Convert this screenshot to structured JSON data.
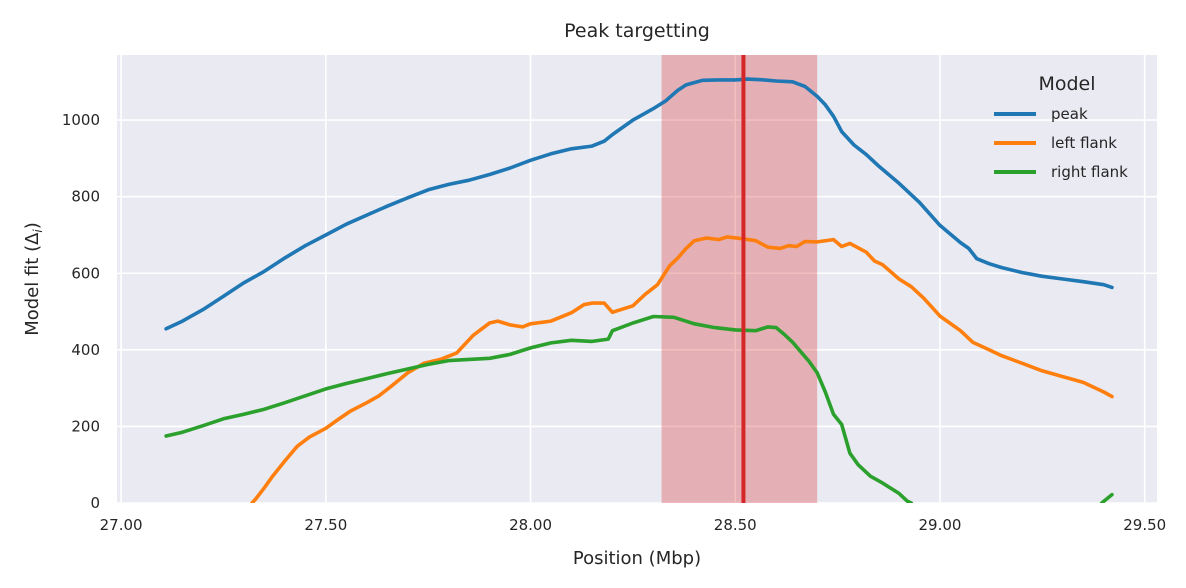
{
  "chart_data": {
    "type": "line",
    "title": "Peak targetting",
    "xlabel": "Position (Mbp)",
    "ylabel": "Model fit (Δ",
    "ylabel_sub": "i",
    "ylabel_close": ")",
    "xlim": [
      26.99,
      29.53
    ],
    "ylim": [
      0,
      1170
    ],
    "xticks": [
      27.0,
      27.5,
      28.0,
      28.5,
      29.0,
      29.5
    ],
    "xtick_labels": [
      "27.00",
      "27.50",
      "28.00",
      "28.50",
      "29.00",
      "29.50"
    ],
    "yticks": [
      0,
      200,
      400,
      600,
      800,
      1000
    ],
    "ytick_labels": [
      "0",
      "200",
      "400",
      "600",
      "800",
      "1000"
    ],
    "grid": true,
    "legend": {
      "title": "Model",
      "placement": "top-right"
    },
    "highlight_band": {
      "x_start": 28.32,
      "x_end": 28.7,
      "color": "#d62728",
      "opacity": 0.3
    },
    "highlight_line": {
      "x": 28.52,
      "color": "#d62728"
    },
    "series": [
      {
        "name": "peak",
        "color": "#1f77b4",
        "points": [
          [
            27.11,
            455
          ],
          [
            27.15,
            475
          ],
          [
            27.2,
            505
          ],
          [
            27.25,
            540
          ],
          [
            27.3,
            575
          ],
          [
            27.35,
            605
          ],
          [
            27.4,
            640
          ],
          [
            27.45,
            672
          ],
          [
            27.5,
            700
          ],
          [
            27.55,
            728
          ],
          [
            27.6,
            752
          ],
          [
            27.65,
            775
          ],
          [
            27.7,
            797
          ],
          [
            27.75,
            818
          ],
          [
            27.8,
            832
          ],
          [
            27.85,
            843
          ],
          [
            27.9,
            858
          ],
          [
            27.95,
            875
          ],
          [
            28.0,
            895
          ],
          [
            28.05,
            912
          ],
          [
            28.1,
            925
          ],
          [
            28.15,
            932
          ],
          [
            28.18,
            945
          ],
          [
            28.2,
            962
          ],
          [
            28.25,
            1000
          ],
          [
            28.3,
            1030
          ],
          [
            28.33,
            1050
          ],
          [
            28.36,
            1078
          ],
          [
            28.38,
            1092
          ],
          [
            28.42,
            1104
          ],
          [
            28.46,
            1105
          ],
          [
            28.5,
            1105
          ],
          [
            28.53,
            1107
          ],
          [
            28.57,
            1105
          ],
          [
            28.6,
            1102
          ],
          [
            28.64,
            1100
          ],
          [
            28.67,
            1088
          ],
          [
            28.7,
            1062
          ],
          [
            28.72,
            1040
          ],
          [
            28.74,
            1010
          ],
          [
            28.76,
            970
          ],
          [
            28.79,
            935
          ],
          [
            28.82,
            910
          ],
          [
            28.85,
            880
          ],
          [
            28.9,
            835
          ],
          [
            28.95,
            785
          ],
          [
            29.0,
            725
          ],
          [
            29.05,
            680
          ],
          [
            29.07,
            665
          ],
          [
            29.09,
            638
          ],
          [
            29.12,
            625
          ],
          [
            29.15,
            615
          ],
          [
            29.2,
            602
          ],
          [
            29.25,
            592
          ],
          [
            29.3,
            585
          ],
          [
            29.35,
            578
          ],
          [
            29.4,
            570
          ],
          [
            29.42,
            563
          ]
        ]
      },
      {
        "name": "left flank",
        "color": "#ff7f0e",
        "points": [
          [
            27.32,
            0
          ],
          [
            27.33,
            12
          ],
          [
            27.35,
            40
          ],
          [
            27.37,
            70
          ],
          [
            27.4,
            110
          ],
          [
            27.43,
            148
          ],
          [
            27.46,
            172
          ],
          [
            27.5,
            195
          ],
          [
            27.53,
            218
          ],
          [
            27.56,
            240
          ],
          [
            27.6,
            262
          ],
          [
            27.63,
            280
          ],
          [
            27.66,
            305
          ],
          [
            27.7,
            340
          ],
          [
            27.74,
            365
          ],
          [
            27.78,
            375
          ],
          [
            27.82,
            392
          ],
          [
            27.86,
            438
          ],
          [
            27.9,
            470
          ],
          [
            27.92,
            475
          ],
          [
            27.95,
            465
          ],
          [
            27.98,
            460
          ],
          [
            28.0,
            468
          ],
          [
            28.05,
            475
          ],
          [
            28.1,
            497
          ],
          [
            28.13,
            518
          ],
          [
            28.15,
            522
          ],
          [
            28.18,
            522
          ],
          [
            28.2,
            498
          ],
          [
            28.25,
            515
          ],
          [
            28.28,
            545
          ],
          [
            28.31,
            570
          ],
          [
            28.34,
            620
          ],
          [
            28.36,
            640
          ],
          [
            28.38,
            665
          ],
          [
            28.4,
            685
          ],
          [
            28.43,
            692
          ],
          [
            28.46,
            688
          ],
          [
            28.48,
            695
          ],
          [
            28.52,
            690
          ],
          [
            28.55,
            685
          ],
          [
            28.58,
            668
          ],
          [
            28.61,
            665
          ],
          [
            28.63,
            672
          ],
          [
            28.65,
            670
          ],
          [
            28.67,
            683
          ],
          [
            28.7,
            682
          ],
          [
            28.74,
            688
          ],
          [
            28.76,
            670
          ],
          [
            28.78,
            678
          ],
          [
            28.82,
            655
          ],
          [
            28.84,
            632
          ],
          [
            28.86,
            622
          ],
          [
            28.9,
            585
          ],
          [
            28.93,
            565
          ],
          [
            28.96,
            535
          ],
          [
            29.0,
            488
          ],
          [
            29.05,
            450
          ],
          [
            29.08,
            420
          ],
          [
            29.12,
            400
          ],
          [
            29.15,
            385
          ],
          [
            29.2,
            365
          ],
          [
            29.25,
            345
          ],
          [
            29.3,
            330
          ],
          [
            29.35,
            315
          ],
          [
            29.4,
            290
          ],
          [
            29.42,
            278
          ]
        ]
      },
      {
        "name": "right flank",
        "color": "#2ca02c",
        "points": [
          [
            27.11,
            175
          ],
          [
            27.15,
            185
          ],
          [
            27.2,
            202
          ],
          [
            27.25,
            220
          ],
          [
            27.3,
            232
          ],
          [
            27.35,
            245
          ],
          [
            27.4,
            262
          ],
          [
            27.45,
            280
          ],
          [
            27.5,
            298
          ],
          [
            27.55,
            312
          ],
          [
            27.6,
            325
          ],
          [
            27.65,
            338
          ],
          [
            27.7,
            350
          ],
          [
            27.75,
            362
          ],
          [
            27.8,
            372
          ],
          [
            27.85,
            375
          ],
          [
            27.9,
            378
          ],
          [
            27.95,
            388
          ],
          [
            28.0,
            405
          ],
          [
            28.05,
            418
          ],
          [
            28.1,
            425
          ],
          [
            28.15,
            422
          ],
          [
            28.19,
            428
          ],
          [
            28.2,
            450
          ],
          [
            28.25,
            470
          ],
          [
            28.3,
            487
          ],
          [
            28.35,
            485
          ],
          [
            28.4,
            468
          ],
          [
            28.45,
            458
          ],
          [
            28.5,
            452
          ],
          [
            28.55,
            450
          ],
          [
            28.58,
            460
          ],
          [
            28.6,
            458
          ],
          [
            28.62,
            440
          ],
          [
            28.64,
            420
          ],
          [
            28.66,
            395
          ],
          [
            28.68,
            370
          ],
          [
            28.7,
            340
          ],
          [
            28.72,
            290
          ],
          [
            28.74,
            232
          ],
          [
            28.76,
            205
          ],
          [
            28.78,
            130
          ],
          [
            28.8,
            100
          ],
          [
            28.83,
            70
          ],
          [
            28.86,
            52
          ],
          [
            28.9,
            25
          ],
          [
            28.92,
            5
          ],
          [
            28.93,
            0
          ]
        ],
        "points_tail": [
          [
            29.395,
            0
          ],
          [
            29.42,
            22
          ]
        ]
      }
    ]
  }
}
